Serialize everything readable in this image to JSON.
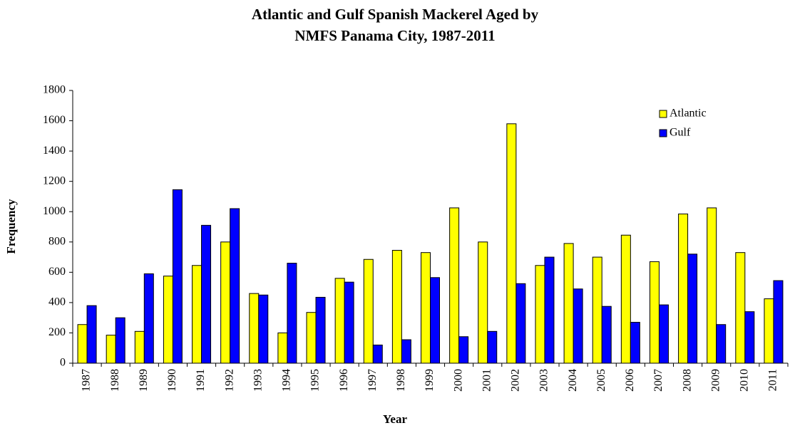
{
  "chart_data": {
    "type": "bar",
    "title": [
      "Atlantic and Gulf Spanish Mackerel Aged by",
      "NMFS Panama City, 1987-2011"
    ],
    "x_label": "Year",
    "y_label": "Frequency",
    "categories": [
      "1987",
      "1988",
      "1989",
      "1990",
      "1991",
      "1992",
      "1993",
      "1994",
      "1995",
      "1996",
      "1997",
      "1998",
      "1999",
      "2000",
      "2001",
      "2002",
      "2003",
      "2004",
      "2005",
      "2006",
      "2007",
      "2008",
      "2009",
      "2010",
      "2011"
    ],
    "series": [
      {
        "name": "Atlantic",
        "color": "#ffff00",
        "values": [
          255,
          185,
          210,
          575,
          645,
          800,
          460,
          200,
          335,
          560,
          685,
          745,
          730,
          1025,
          800,
          1580,
          645,
          790,
          700,
          845,
          670,
          985,
          1025,
          730,
          425
        ]
      },
      {
        "name": "Gulf",
        "color": "#0000ff",
        "values": [
          380,
          300,
          590,
          1145,
          910,
          1020,
          450,
          660,
          435,
          535,
          120,
          155,
          565,
          175,
          210,
          525,
          700,
          490,
          375,
          270,
          385,
          720,
          255,
          340,
          545
        ]
      }
    ],
    "ylim": [
      0,
      1800
    ],
    "yticks": [
      0,
      200,
      400,
      600,
      800,
      1000,
      1200,
      1400,
      1600,
      1800
    ],
    "grid": false,
    "legend": "upper right"
  }
}
